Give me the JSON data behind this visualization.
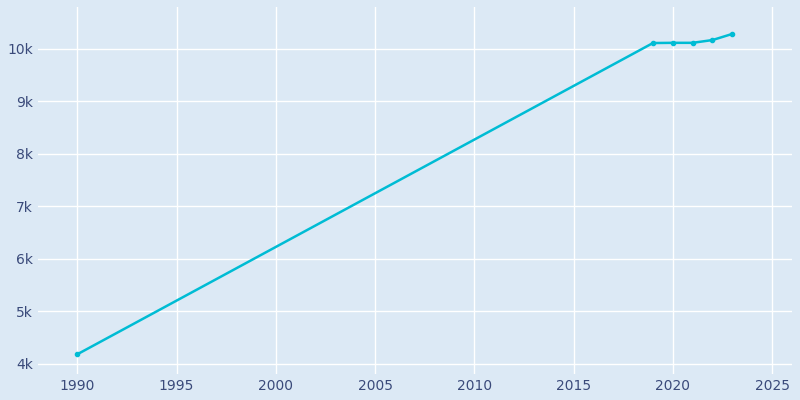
{
  "years": [
    1990,
    2019,
    2020,
    2021,
    2022,
    2023
  ],
  "population": [
    4179,
    10112,
    10116,
    10116,
    10169,
    10286
  ],
  "line_color": "#00bcd4",
  "marker": "o",
  "marker_size": 3,
  "line_width": 1.8,
  "bg_color": "#dce9f5",
  "plot_bg_color": "#dce9f5",
  "grid_color": "#ffffff",
  "tick_color": "#3a4a7a",
  "xlim": [
    1988,
    2026
  ],
  "ylim": [
    3800,
    10800
  ],
  "xticks": [
    1990,
    1995,
    2000,
    2005,
    2010,
    2015,
    2020,
    2025
  ],
  "ytick_values": [
    4000,
    5000,
    6000,
    7000,
    8000,
    9000,
    10000
  ],
  "ytick_labels": [
    "4k",
    "5k",
    "6k",
    "7k",
    "8k",
    "9k",
    "10k"
  ]
}
